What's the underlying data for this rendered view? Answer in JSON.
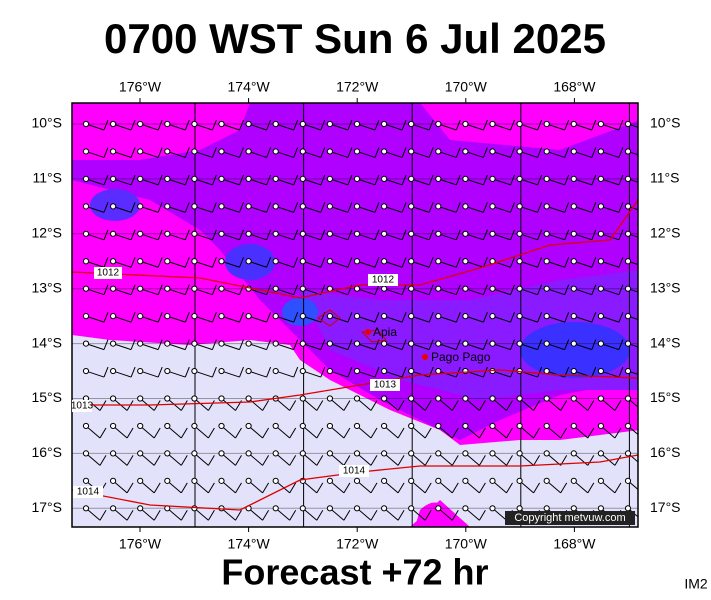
{
  "header": {
    "title": "0700 WST Sun 6 Jul 2025"
  },
  "map": {
    "lon_labels": [
      "176°W",
      "174°W",
      "172°W",
      "170°W",
      "168°W"
    ],
    "lat_labels": [
      "10°S",
      "11°S",
      "12°S",
      "13°S",
      "14°S",
      "15°S",
      "16°S",
      "17°S"
    ],
    "isobars": [
      "1012",
      "1012",
      "1013",
      "1013",
      "1014",
      "1014"
    ],
    "places": [
      "Apia",
      "Pago Pago"
    ],
    "copyright": "Copyright metvuw.com"
  },
  "footer": {
    "forecast": "Forecast +72 hr",
    "code": "IM2"
  }
}
